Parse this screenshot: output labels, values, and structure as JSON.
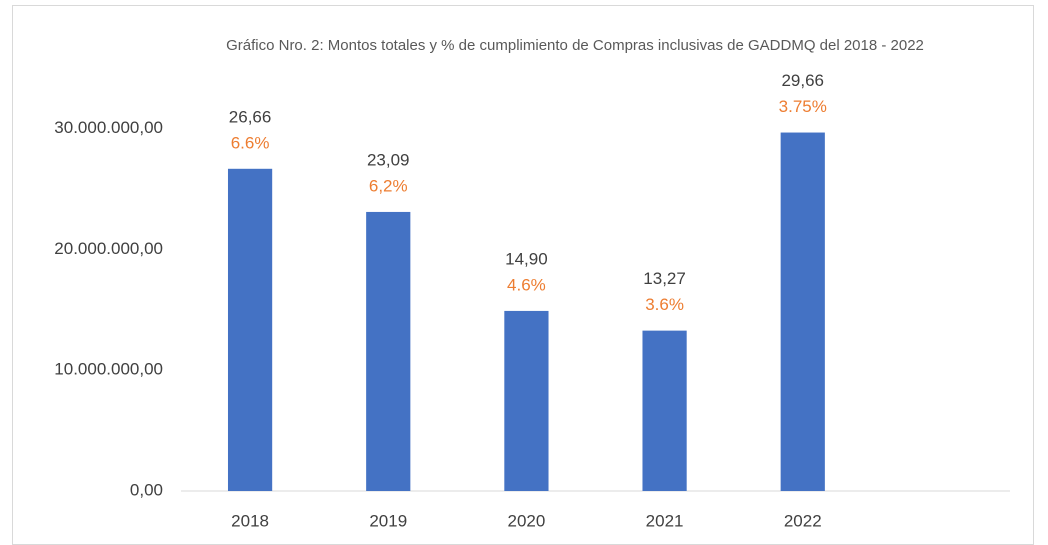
{
  "chart_data": {
    "type": "bar",
    "title": "Gráfico Nro. 2: Montos totales y % de cumplimiento de Compras inclusivas de GADDMQ del 2018 - 2022",
    "categories": [
      "2018",
      "2019",
      "2020",
      "2021",
      "2022",
      null
    ],
    "values": [
      26660000,
      23090000,
      14900000,
      13270000,
      29660000,
      null
    ],
    "value_labels": [
      "26,66",
      "23,09",
      "14,90",
      "13,27",
      "29,66",
      null
    ],
    "percent_labels": [
      "6.6%",
      "6,2%",
      "4.6%",
      "3.6%",
      "3.75%",
      null
    ],
    "color": "#4472c4",
    "percent_color": "#ed7d31",
    "ylim": [
      0,
      35000000
    ],
    "yticks": [
      {
        "value": 0,
        "label": "0,00"
      },
      {
        "value": 10000000,
        "label": "10.000.000,00"
      },
      {
        "value": 20000000,
        "label": "20.000.000,00"
      },
      {
        "value": 30000000,
        "label": "30.000.000,00"
      }
    ],
    "grid": false
  }
}
